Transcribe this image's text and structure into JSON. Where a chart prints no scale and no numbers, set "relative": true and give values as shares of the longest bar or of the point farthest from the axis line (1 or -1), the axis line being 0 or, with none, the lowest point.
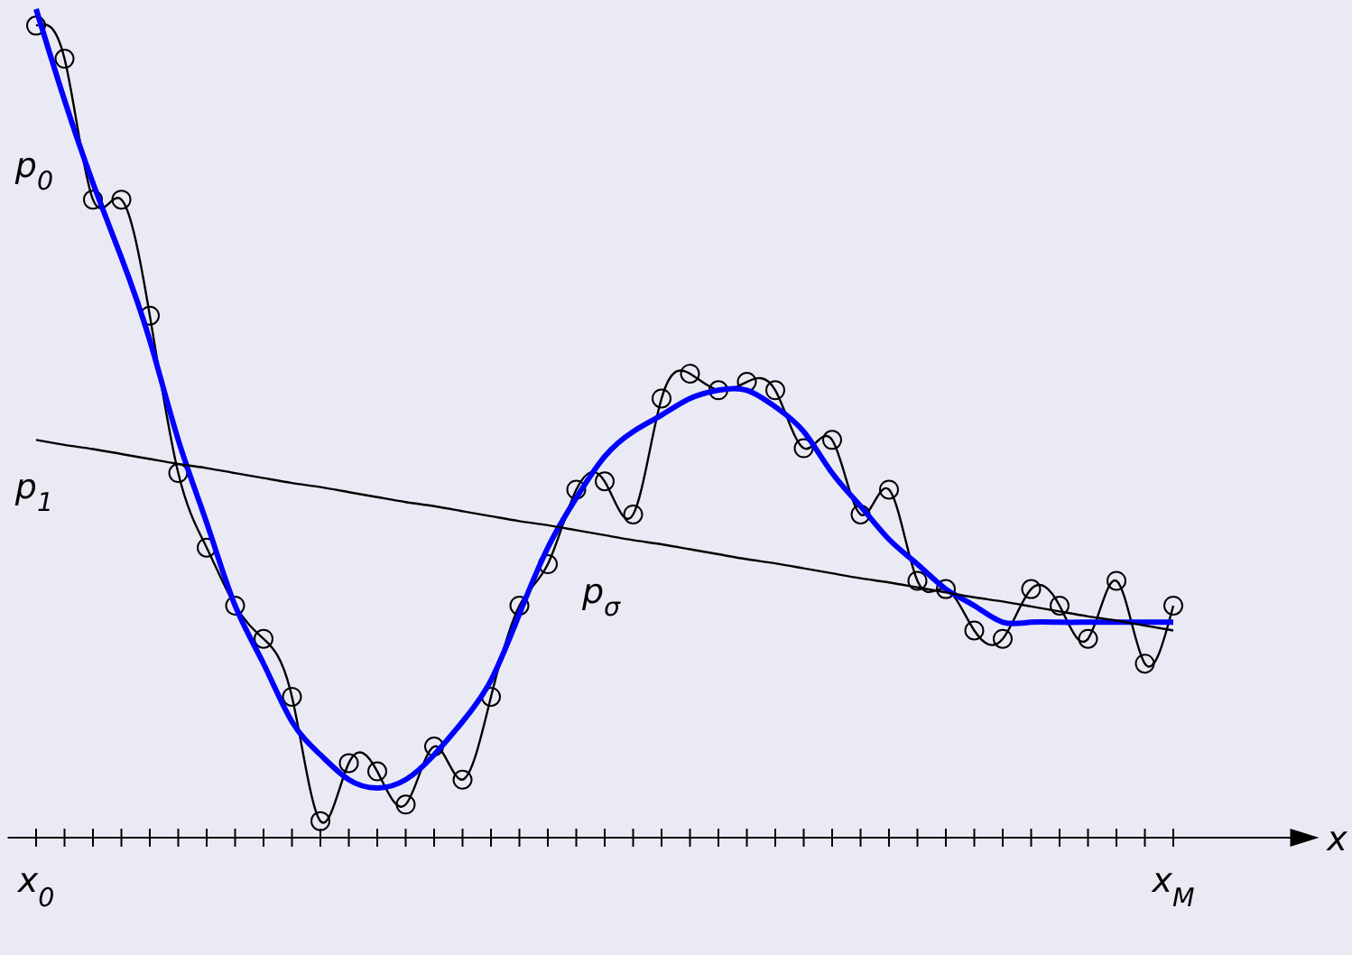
{
  "chart_data": {
    "type": "line",
    "relative": true,
    "xlabel": "x",
    "categories": [
      "x$_{0}$",
      null,
      null,
      null,
      null,
      null,
      null,
      null,
      null,
      null,
      null,
      null,
      null,
      null,
      null,
      null,
      null,
      null,
      null,
      null,
      null,
      null,
      null,
      null,
      null,
      null,
      null,
      null,
      null,
      null,
      null,
      null,
      null,
      null,
      null,
      null,
      null,
      null,
      null,
      null,
      "x$_{M}$"
    ],
    "series": [
      {
        "color": "#000000",
        "marker": "circle",
        "line_style": "solid",
        "values": [
          0.98,
          0.94,
          0.77,
          0.77,
          0.63,
          0.44,
          0.35,
          0.28,
          0.24,
          0.17,
          0.02,
          0.09,
          0.08,
          0.04,
          0.11,
          0.07,
          0.17,
          0.28,
          0.33,
          0.42,
          0.43,
          0.39,
          0.53,
          0.56,
          0.54,
          0.55,
          0.54,
          0.47,
          0.48,
          0.39,
          0.42,
          0.31,
          0.3,
          0.25,
          0.24,
          0.3,
          0.28,
          0.24,
          0.31,
          0.21,
          0.28
        ]
      },
      {
        "color": "#0000ff",
        "marker": "none",
        "line_style": "solid",
        "values": [
          1.0,
          0.89,
          0.79,
          0.7,
          0.6,
          0.48,
          0.38,
          0.28,
          0.21,
          0.14,
          0.1,
          0.07,
          0.06,
          0.07,
          0.1,
          0.14,
          0.19,
          0.27,
          0.35,
          0.41,
          0.46,
          0.49,
          0.51,
          0.53,
          0.54,
          0.54,
          0.52,
          0.49,
          0.44,
          0.4,
          0.36,
          0.33,
          0.3,
          0.28,
          0.26,
          0.26,
          0.26,
          0.26,
          0.26,
          0.26,
          0.26
        ]
      },
      {
        "color": "#000000",
        "marker": "none",
        "line_style": "solid",
        "values": [
          0.48,
          0.474,
          0.469,
          0.463,
          0.457,
          0.451,
          0.446,
          0.44,
          0.434,
          0.428,
          0.423,
          0.417,
          0.411,
          0.405,
          0.4,
          0.394,
          0.388,
          0.382,
          0.377,
          0.371,
          0.365,
          0.359,
          0.354,
          0.348,
          0.342,
          0.336,
          0.331,
          0.325,
          0.319,
          0.313,
          0.308,
          0.302,
          0.296,
          0.29,
          0.285,
          0.279,
          0.273,
          0.267,
          0.262,
          0.256,
          0.25
        ]
      }
    ],
    "annotations": [
      "p$_{0}$",
      "p$_{1}$",
      "p$_{σ}$"
    ]
  }
}
